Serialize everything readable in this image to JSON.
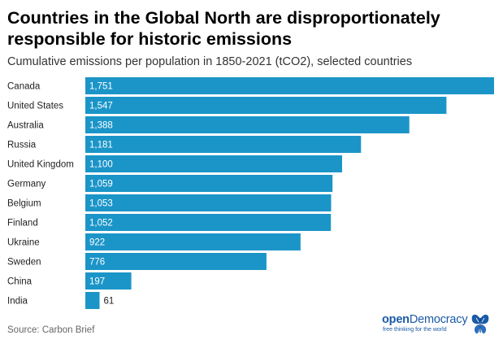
{
  "chart_data": {
    "type": "bar",
    "orientation": "horizontal",
    "title": "Countries in the Global North are disproportionately responsible for historic emissions",
    "subtitle": "Cumulative emissions per population in 1850-2021 (tCO2), selected countries",
    "categories": [
      "Canada",
      "United States",
      "Australia",
      "Russia",
      "United Kingdom",
      "Germany",
      "Belgium",
      "Finland",
      "Ukraine",
      "Sweden",
      "China",
      "India"
    ],
    "values": [
      1751,
      1547,
      1388,
      1181,
      1100,
      1059,
      1053,
      1052,
      922,
      776,
      197,
      61
    ],
    "value_labels": [
      "1,751",
      "1,547",
      "1,388",
      "1,181",
      "1,100",
      "1,059",
      "1,053",
      "1,052",
      "922",
      "776",
      "197",
      "61"
    ],
    "xlim": [
      0,
      1751
    ],
    "bar_color": "#1b95c8",
    "source": "Source: Carbon Brief"
  },
  "logo": {
    "name_bold": "open",
    "name_rest": "Democracy",
    "tagline": "free thinking for the world",
    "icon": "butterfly-icon",
    "color": "#1a5aa6"
  }
}
